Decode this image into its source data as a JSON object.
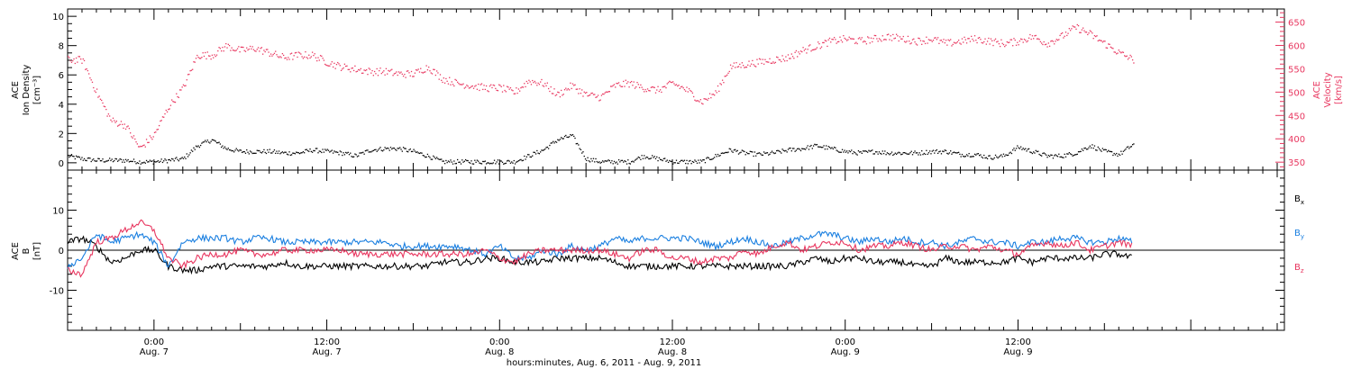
{
  "chart_data": [
    {
      "type": "scatter",
      "panel": "plasma",
      "ylabel_left_lines": [
        "ACE",
        "Ion Density",
        "[cm⁻³]"
      ],
      "ylabel_right_lines": [
        "ACE",
        "Velocity",
        "[km/s]"
      ],
      "ylim_left": [
        -0.5,
        10.5
      ],
      "yticks_left": [
        0,
        2,
        4,
        6,
        8,
        10
      ],
      "ylim_right": [
        333,
        678
      ],
      "yticks_right": [
        350,
        400,
        450,
        500,
        550,
        600,
        650
      ],
      "right_axis_color": "#e8365f",
      "grid": false,
      "series": [
        {
          "name": "",
          "axis": "left",
          "color": "#000000",
          "x_hours": [
            0,
            1,
            2,
            3,
            4,
            5,
            6,
            7,
            8,
            9,
            10,
            11,
            12,
            13,
            14,
            15,
            16,
            17,
            18,
            19,
            20,
            21,
            22,
            23,
            24,
            25,
            26,
            27,
            28,
            29,
            30,
            31,
            32,
            33,
            34,
            35,
            36,
            37,
            38,
            39,
            40,
            41,
            42,
            43,
            44,
            45,
            46,
            47,
            48,
            49,
            50,
            51,
            52,
            53,
            54,
            55,
            56,
            57,
            58,
            59,
            60,
            61,
            62,
            63,
            64,
            65,
            66,
            67,
            68,
            69,
            70,
            71,
            72,
            73,
            74
          ],
          "y": [
            0.5,
            0.3,
            0.2,
            0.2,
            0.2,
            0.1,
            0.1,
            0.2,
            0.3,
            1.2,
            1.6,
            1.0,
            0.8,
            0.8,
            0.8,
            0.7,
            0.7,
            0.9,
            0.8,
            0.7,
            0.5,
            0.9,
            1.0,
            1.0,
            0.8,
            0.5,
            0.1,
            0.1,
            0.1,
            0.1,
            0.1,
            0.1,
            0.5,
            0.9,
            1.6,
            1.9,
            0.3,
            0.1,
            0.1,
            0.1,
            0.5,
            0.3,
            0.1,
            0.1,
            0.1,
            0.5,
            0.9,
            0.7,
            0.6,
            0.7,
            0.9,
            1.0,
            1.2,
            1.0,
            0.8,
            0.7,
            0.8,
            0.7,
            0.7,
            0.7,
            0.8,
            0.8,
            0.6,
            0.6,
            0.4,
            0.5,
            1.1,
            0.8,
            0.5,
            0.5,
            0.7,
            1.2,
            0.8,
            0.6,
            1.3
          ]
        },
        {
          "name": "",
          "axis": "right",
          "color": "#e8365f",
          "x_hours": [
            0,
            1,
            2,
            3,
            4,
            5,
            6,
            7,
            8,
            9,
            10,
            11,
            12,
            13,
            14,
            15,
            16,
            17,
            18,
            19,
            20,
            21,
            22,
            23,
            24,
            25,
            26,
            27,
            28,
            29,
            30,
            31,
            32,
            33,
            34,
            35,
            36,
            37,
            38,
            39,
            40,
            41,
            42,
            43,
            44,
            45,
            46,
            47,
            48,
            49,
            50,
            51,
            52,
            53,
            54,
            55,
            56,
            57,
            58,
            59,
            60,
            61,
            62,
            63,
            64,
            65,
            66,
            67,
            68,
            69,
            70,
            71,
            72,
            73,
            74
          ],
          "y": [
            570,
            570,
            500,
            440,
            430,
            380,
            410,
            470,
            510,
            580,
            580,
            600,
            590,
            595,
            585,
            575,
            580,
            580,
            565,
            555,
            550,
            545,
            545,
            540,
            540,
            555,
            530,
            520,
            515,
            510,
            510,
            500,
            525,
            520,
            495,
            515,
            495,
            490,
            515,
            520,
            510,
            505,
            520,
            505,
            480,
            500,
            555,
            560,
            565,
            570,
            575,
            590,
            600,
            610,
            615,
            610,
            615,
            620,
            615,
            610,
            615,
            605,
            610,
            615,
            610,
            605,
            610,
            620,
            605,
            620,
            640,
            625,
            605,
            585,
            570
          ]
        }
      ]
    },
    {
      "type": "line",
      "panel": "magnetic field",
      "ylabel_left_lines": [
        "ACE",
        "B",
        "[nT]"
      ],
      "ylim": [
        -20,
        20
      ],
      "yticks": [
        -10,
        0,
        10
      ],
      "zero_line": true,
      "grid": false,
      "legend": "right",
      "series": [
        {
          "name": "B",
          "subscript": "x",
          "color": "#000000",
          "x_hours": [
            0,
            1,
            2,
            3,
            4,
            5,
            6,
            7,
            8,
            9,
            10,
            11,
            12,
            13,
            14,
            15,
            16,
            17,
            18,
            19,
            20,
            21,
            22,
            23,
            24,
            25,
            26,
            27,
            28,
            29,
            30,
            31,
            32,
            33,
            34,
            35,
            36,
            37,
            38,
            39,
            40,
            41,
            42,
            43,
            44,
            45,
            46,
            47,
            48,
            49,
            50,
            51,
            52,
            53,
            54,
            55,
            56,
            57,
            58,
            59,
            60,
            61,
            62,
            63,
            64,
            65,
            66,
            67,
            68,
            69,
            70,
            71,
            72,
            73,
            74
          ],
          "y": [
            2,
            3,
            1,
            -3,
            -2,
            0,
            0,
            -4,
            -5,
            -5,
            -4,
            -4,
            -4,
            -4,
            -4,
            -3,
            -4,
            -4,
            -4,
            -4,
            -4,
            -4,
            -4,
            -4,
            -4,
            -4,
            -3,
            -3,
            -3,
            -2,
            -2,
            -3,
            -3,
            -3,
            -2,
            -2,
            -2,
            -2,
            -3,
            -4,
            -4,
            -4,
            -4,
            -4,
            -4,
            -4,
            -4,
            -4,
            -4,
            -4,
            -4,
            -3,
            -2,
            -3,
            -2,
            -2,
            -3,
            -3,
            -3,
            -4,
            -4,
            -2,
            -3,
            -3,
            -3,
            -3,
            -2,
            -3,
            -2,
            -2,
            -2,
            -2,
            -1,
            -1,
            -2
          ]
        },
        {
          "name": "B",
          "subscript": "y",
          "color": "#1a7fe0",
          "x_hours": [
            0,
            1,
            2,
            3,
            4,
            5,
            6,
            7,
            8,
            9,
            10,
            11,
            12,
            13,
            14,
            15,
            16,
            17,
            18,
            19,
            20,
            21,
            22,
            23,
            24,
            25,
            26,
            27,
            28,
            29,
            30,
            31,
            32,
            33,
            34,
            35,
            36,
            37,
            38,
            39,
            40,
            41,
            42,
            43,
            44,
            45,
            46,
            47,
            48,
            49,
            50,
            51,
            52,
            53,
            54,
            55,
            56,
            57,
            58,
            59,
            60,
            61,
            62,
            63,
            64,
            65,
            66,
            67,
            68,
            69,
            70,
            71,
            72,
            73,
            74
          ],
          "y": [
            -4,
            -2,
            4,
            2,
            3,
            4,
            2,
            -4,
            2,
            3,
            3,
            3,
            2,
            3,
            3,
            2,
            2,
            2,
            2,
            2,
            2,
            2,
            2,
            1,
            1,
            1,
            1,
            1,
            0,
            -1,
            1,
            -2,
            -2,
            0,
            -1,
            1,
            0,
            1,
            3,
            2,
            3,
            3,
            3,
            3,
            2,
            1,
            2,
            3,
            2,
            1,
            2,
            3,
            4,
            4,
            3,
            2,
            3,
            2,
            3,
            2,
            2,
            1,
            2,
            3,
            2,
            2,
            1,
            2,
            2,
            3,
            3,
            2,
            2,
            3,
            2
          ]
        },
        {
          "name": "B",
          "subscript": "z",
          "color": "#e8365f",
          "x_hours": [
            0,
            1,
            2,
            3,
            4,
            5,
            6,
            7,
            8,
            9,
            10,
            11,
            12,
            13,
            14,
            15,
            16,
            17,
            18,
            19,
            20,
            21,
            22,
            23,
            24,
            25,
            26,
            27,
            28,
            29,
            30,
            31,
            32,
            33,
            34,
            35,
            36,
            37,
            38,
            39,
            40,
            41,
            42,
            43,
            44,
            45,
            46,
            47,
            48,
            49,
            50,
            51,
            52,
            53,
            54,
            55,
            56,
            57,
            58,
            59,
            60,
            61,
            62,
            63,
            64,
            65,
            66,
            67,
            68,
            69,
            70,
            71,
            72,
            73,
            74
          ],
          "y": [
            -5,
            -6,
            2,
            3,
            5,
            7,
            5,
            -2,
            -4,
            -2,
            -1,
            -1,
            0,
            -1,
            -1,
            0,
            0,
            0,
            0,
            0,
            -1,
            -1,
            -1,
            -1,
            -1,
            -1,
            -1,
            -1,
            -1,
            0,
            -2,
            -3,
            -1,
            0,
            0,
            0,
            0,
            0,
            -1,
            -2,
            0,
            0,
            -2,
            -2,
            -3,
            -2,
            -2,
            0,
            -1,
            1,
            2,
            0,
            1,
            2,
            2,
            0,
            1,
            1,
            2,
            1,
            0,
            1,
            1,
            0,
            1,
            0,
            -1,
            1,
            2,
            1,
            2,
            0,
            1,
            2,
            1
          ]
        }
      ]
    }
  ],
  "x_axis": {
    "xlim_hours": [
      0,
      84.5
    ],
    "major_ticks": [
      {
        "hour": 6,
        "time": "0:00",
        "date": "Aug. 7"
      },
      {
        "hour": 18,
        "time": "12:00",
        "date": "Aug. 7"
      },
      {
        "hour": 30,
        "time": "0:00",
        "date": "Aug. 8"
      },
      {
        "hour": 42,
        "time": "12:00",
        "date": "Aug. 8"
      },
      {
        "hour": 54,
        "time": "0:00",
        "date": "Aug. 9"
      },
      {
        "hour": 66,
        "time": "12:00",
        "date": "Aug. 9"
      }
    ],
    "label": "hours:minutes, Aug.  6, 2011 - Aug.  9, 2011"
  }
}
